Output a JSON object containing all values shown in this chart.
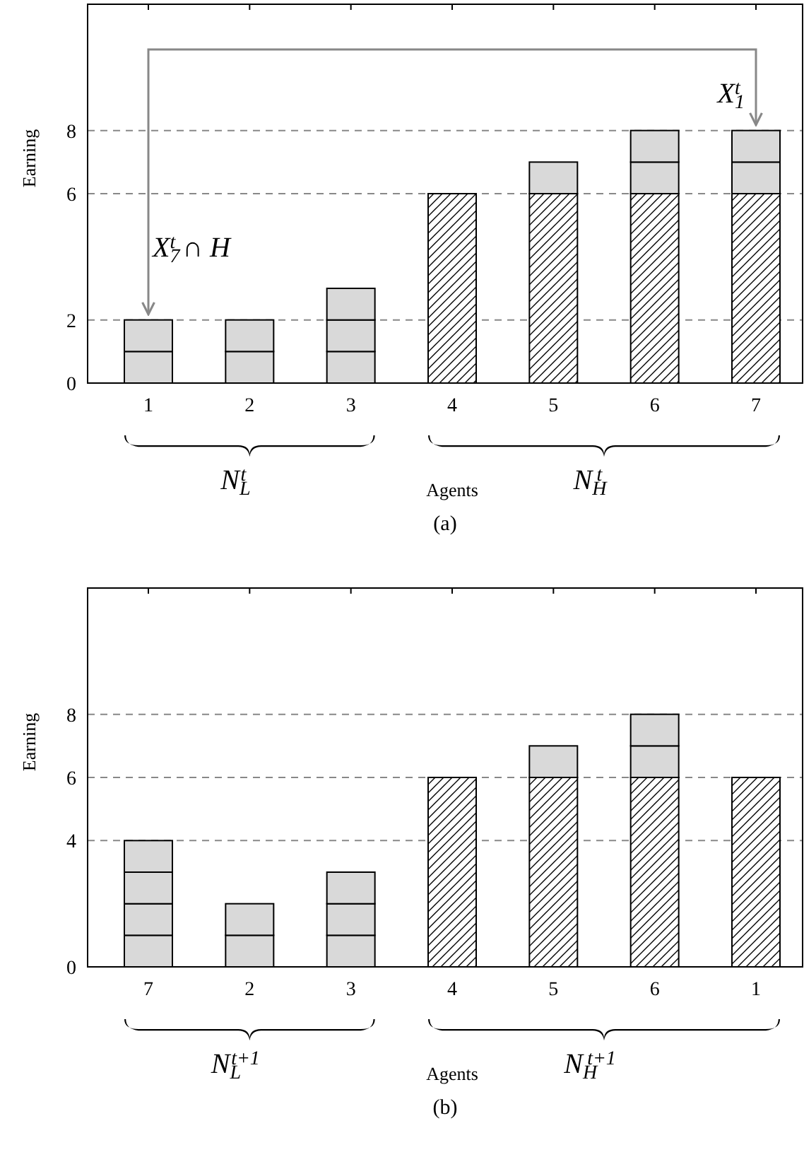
{
  "chart_data": [
    {
      "type": "bar",
      "stacked": true,
      "categories": [
        "1",
        "2",
        "3",
        "4",
        "5",
        "6",
        "7"
      ],
      "xlabel": "Agents",
      "ylabel": "Earning",
      "ylim": [
        0,
        12
      ],
      "yticks": [
        0,
        2,
        6,
        8
      ],
      "grid": "y",
      "series": [
        {
          "color": "#000000",
          "values": [
            null,
            null,
            null,
            6,
            6,
            6,
            6
          ]
        },
        {
          "color": "#d9d9d9",
          "values": [
            1,
            1,
            1,
            null,
            1,
            1,
            1
          ]
        },
        {
          "color": "#d9d9d9",
          "values": [
            1,
            1,
            1,
            null,
            null,
            1,
            1
          ]
        },
        {
          "color": "#d9d9d9",
          "values": [
            null,
            null,
            1,
            null,
            null,
            null,
            null
          ]
        }
      ],
      "annotations": [
        {
          "text": "X$_{7}$$^{t}$ ∩ H",
          "x": "1",
          "y": 2
        },
        {
          "text": "X$_{1}$$^{t}$",
          "x": "7",
          "y": 8
        },
        "N$_{L}$$^{t}$",
        "N$_{H}$$^{t}$",
        "(a)"
      ]
    },
    {
      "type": "bar",
      "stacked": true,
      "categories": [
        "7",
        "2",
        "3",
        "4",
        "5",
        "6",
        "1"
      ],
      "xlabel": "Agents",
      "ylabel": "Earning",
      "ylim": [
        0,
        12
      ],
      "yticks": [
        0,
        4,
        6,
        8
      ],
      "grid": "y",
      "series": [
        {
          "color": "#000000",
          "values": [
            null,
            null,
            null,
            6,
            6,
            6,
            6
          ]
        },
        {
          "color": "#d9d9d9",
          "values": [
            1,
            1,
            1,
            null,
            1,
            1,
            null
          ]
        },
        {
          "color": "#d9d9d9",
          "values": [
            1,
            1,
            1,
            null,
            null,
            1,
            null
          ]
        },
        {
          "color": "#d9d9d9",
          "values": [
            1,
            null,
            1,
            null,
            null,
            null,
            null
          ]
        },
        {
          "color": "#d9d9d9",
          "values": [
            1,
            null,
            null,
            null,
            null,
            null,
            null
          ]
        }
      ],
      "annotations": [
        "N$_{L}$$^{t+1}$",
        "N$_{H}$$^{t+1}$",
        "(b)"
      ]
    }
  ]
}
